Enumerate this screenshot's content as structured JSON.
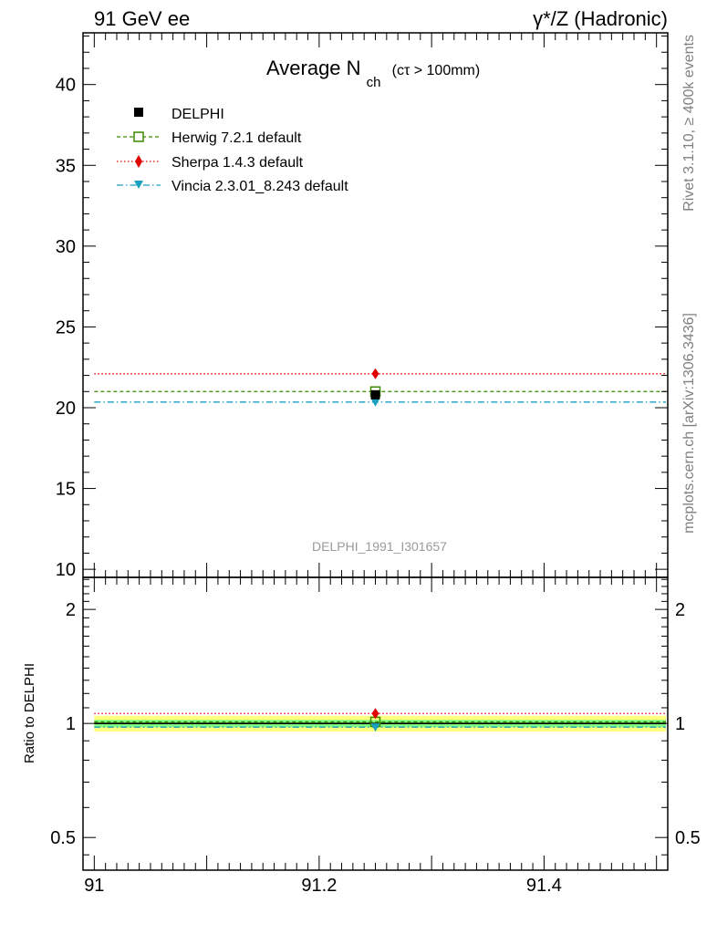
{
  "header": {
    "left": "91 GeV ee",
    "right": "γ*/Z (Hadronic)"
  },
  "side": {
    "rivet": "Rivet 3.1.10, ≥ 400k events",
    "mcplots": "mcplots.cern.ch [arXiv:1306.3436]"
  },
  "chart_data": {
    "type": "scatter",
    "title_main": "Average N",
    "title_sub": "ch",
    "title_cond": "(cτ > 100mm)",
    "watermark": "DELPHI_1991_I301657",
    "x_range": [
      90.99,
      91.51
    ],
    "x_ticks": [
      "91",
      "91.2",
      "91.4"
    ],
    "x_tick_values": [
      91.0,
      91.2,
      91.4
    ],
    "main": {
      "ylim": [
        9.5,
        43.2
      ],
      "y_ticks": [
        "10",
        "15",
        "20",
        "25",
        "30",
        "35",
        "40"
      ],
      "y_tick_values": [
        10,
        15,
        20,
        25,
        30,
        35,
        40
      ],
      "x_point": 91.25,
      "series": [
        {
          "name": "DELPHI",
          "value": 20.8,
          "color": "#000000",
          "marker": "square-filled",
          "line": "none"
        },
        {
          "name": "Herwig 7.2.1 default",
          "value": 21.0,
          "color": "#3a8a00",
          "marker": "square-open",
          "line": "dashed"
        },
        {
          "name": "Sherpa 1.4.3 default",
          "value": 22.1,
          "color": "#e00000",
          "marker": "diamond",
          "line": "dotted"
        },
        {
          "name": "Vincia 2.3.01_8.243 default",
          "value": 20.35,
          "color": "#1a9fbf",
          "marker": "triangle-down",
          "line": "dashdot"
        }
      ]
    },
    "ratio": {
      "ylabel": "Ratio to DELPHI",
      "log_scale": true,
      "ylim": [
        0.41,
        2.43
      ],
      "y_ticks": [
        "0.5",
        "1",
        "2"
      ],
      "y_tick_values": [
        0.5,
        1,
        2
      ],
      "bands": [
        {
          "lo": 0.952,
          "hi": 1.048,
          "color": "#ffff80"
        },
        {
          "lo": 0.978,
          "hi": 1.022,
          "color": "#80ff80"
        }
      ],
      "values": [
        1.0,
        1.0096,
        1.0625,
        0.978
      ]
    }
  }
}
